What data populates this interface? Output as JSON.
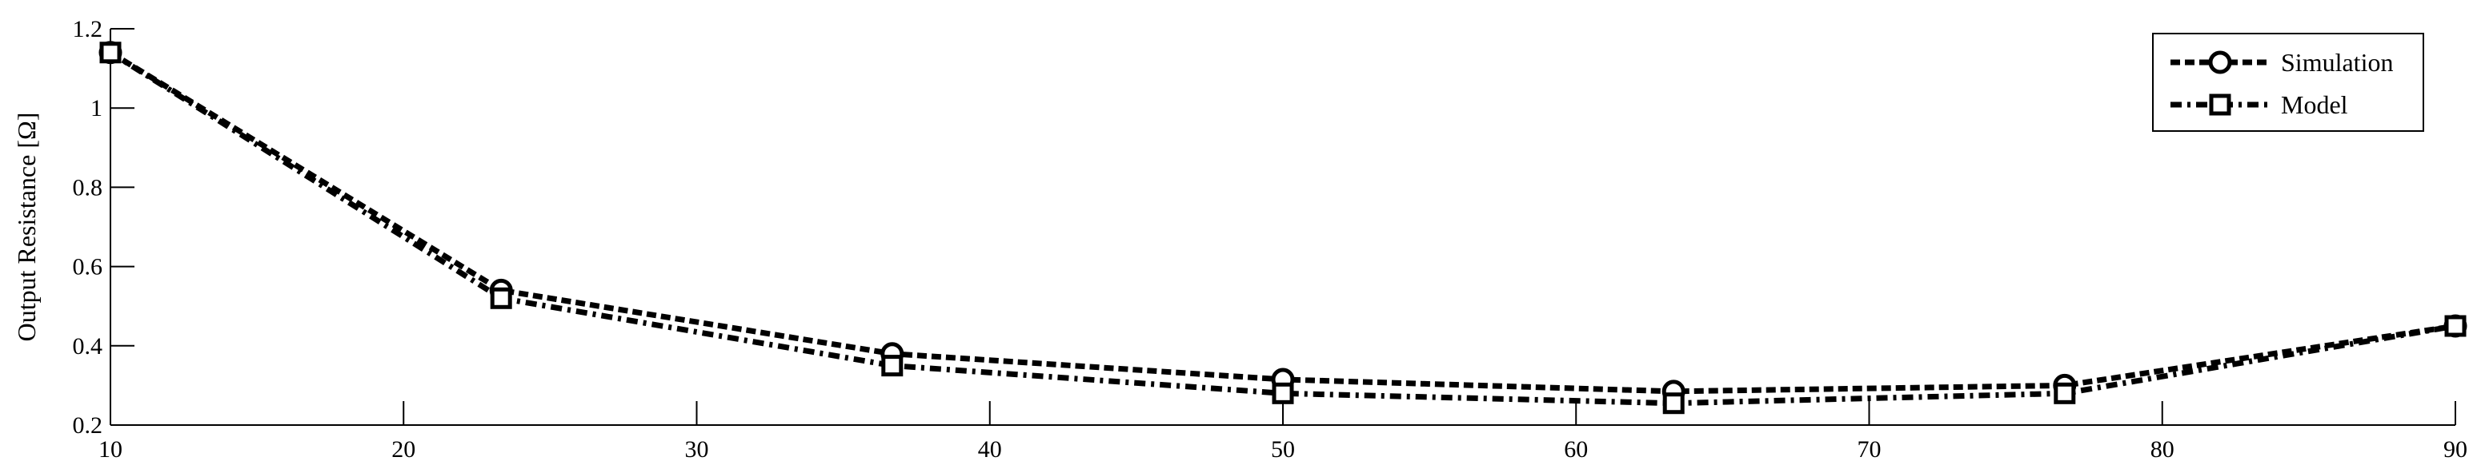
{
  "chart_data": {
    "type": "line",
    "title": "",
    "xlabel": "",
    "ylabel": "Output Resistance [Ω]",
    "xlim": [
      10,
      90
    ],
    "ylim": [
      0.2,
      1.2
    ],
    "xticks": [
      10,
      20,
      30,
      40,
      50,
      60,
      70,
      80,
      90
    ],
    "yticks": [
      0.2,
      0.4,
      0.6,
      0.8,
      1,
      1.2
    ],
    "xtick_labels": [
      "10",
      "20",
      "30",
      "40",
      "50",
      "60",
      "70",
      "80",
      "90"
    ],
    "ytick_labels": [
      "0.2",
      "0.4",
      "0.6",
      "0.8",
      "1",
      "1.2"
    ],
    "grid": false,
    "legend_position": "top-right",
    "series": [
      {
        "name": "Simulation",
        "marker": "circle",
        "line_style": "dashed",
        "color": "#000000",
        "x": [
          10,
          23.33,
          36.67,
          50,
          63.33,
          76.67,
          90
        ],
        "y": [
          1.14,
          0.54,
          0.38,
          0.315,
          0.285,
          0.3,
          0.45
        ]
      },
      {
        "name": "Model",
        "marker": "square",
        "line_style": "dash-dot",
        "color": "#000000",
        "x": [
          10,
          23.33,
          36.67,
          50,
          63.33,
          76.67,
          90
        ],
        "y": [
          1.14,
          0.52,
          0.35,
          0.28,
          0.255,
          0.28,
          0.45
        ]
      }
    ]
  }
}
